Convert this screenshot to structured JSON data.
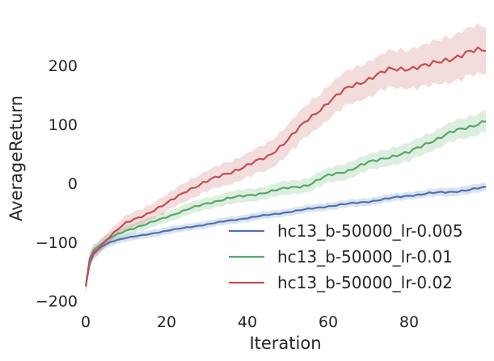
{
  "chart_data": {
    "type": "line",
    "xlabel": "Iteration",
    "ylabel": "AverageReturn",
    "xlim": [
      0,
      99
    ],
    "ylim": [
      -210,
      270
    ],
    "x_ticks": [
      0,
      20,
      40,
      60,
      80
    ],
    "y_ticks": [
      -200,
      -100,
      0,
      100,
      200
    ],
    "grid": false,
    "legend_position": "lower-right",
    "x": [
      0,
      1,
      2,
      4,
      6,
      8,
      10,
      15,
      20,
      25,
      30,
      35,
      40,
      45,
      50,
      55,
      60,
      65,
      70,
      75,
      80,
      85,
      90,
      95,
      99
    ],
    "series": [
      {
        "name": "hc13_b-50000_lr-0.005",
        "color": "#4c72b0",
        "values": [
          -175,
          -135,
          -120,
          -107,
          -100,
          -96,
          -93,
          -87,
          -81,
          -75,
          -70,
          -64,
          -59,
          -54,
          -49,
          -44,
          -39,
          -35,
          -31,
          -26,
          -21,
          -17,
          -15,
          -11,
          -7
        ],
        "band": [
          8,
          10,
          8,
          7,
          7,
          6,
          6,
          6,
          6,
          6,
          6,
          6,
          6,
          6,
          6,
          6,
          6,
          6,
          6,
          6,
          6,
          6,
          7,
          7,
          7
        ]
      },
      {
        "name": "hc13_b-50000_lr-0.01",
        "color": "#55a868",
        "values": [
          -175,
          -128,
          -113,
          -103,
          -93,
          -86,
          -80,
          -70,
          -57,
          -45,
          -34,
          -26,
          -21,
          -15,
          -8,
          -3,
          13,
          22,
          35,
          45,
          52,
          70,
          85,
          96,
          107
        ],
        "band": [
          10,
          10,
          9,
          8,
          8,
          8,
          8,
          8,
          8,
          9,
          9,
          10,
          10,
          10,
          11,
          11,
          12,
          13,
          13,
          14,
          15,
          15,
          16,
          17,
          17
        ]
      },
      {
        "name": "hc13_b-50000_lr-0.02",
        "color": "#c44e52",
        "values": [
          -175,
          -130,
          -117,
          -104,
          -90,
          -78,
          -68,
          -52,
          -35,
          -12,
          3,
          17,
          30,
          45,
          74,
          108,
          138,
          162,
          178,
          192,
          196,
          200,
          212,
          222,
          227
        ],
        "band": [
          10,
          11,
          10,
          10,
          10,
          10,
          11,
          12,
          13,
          15,
          16,
          18,
          19,
          22,
          24,
          26,
          27,
          28,
          29,
          30,
          32,
          35,
          38,
          40,
          40
        ]
      }
    ]
  }
}
